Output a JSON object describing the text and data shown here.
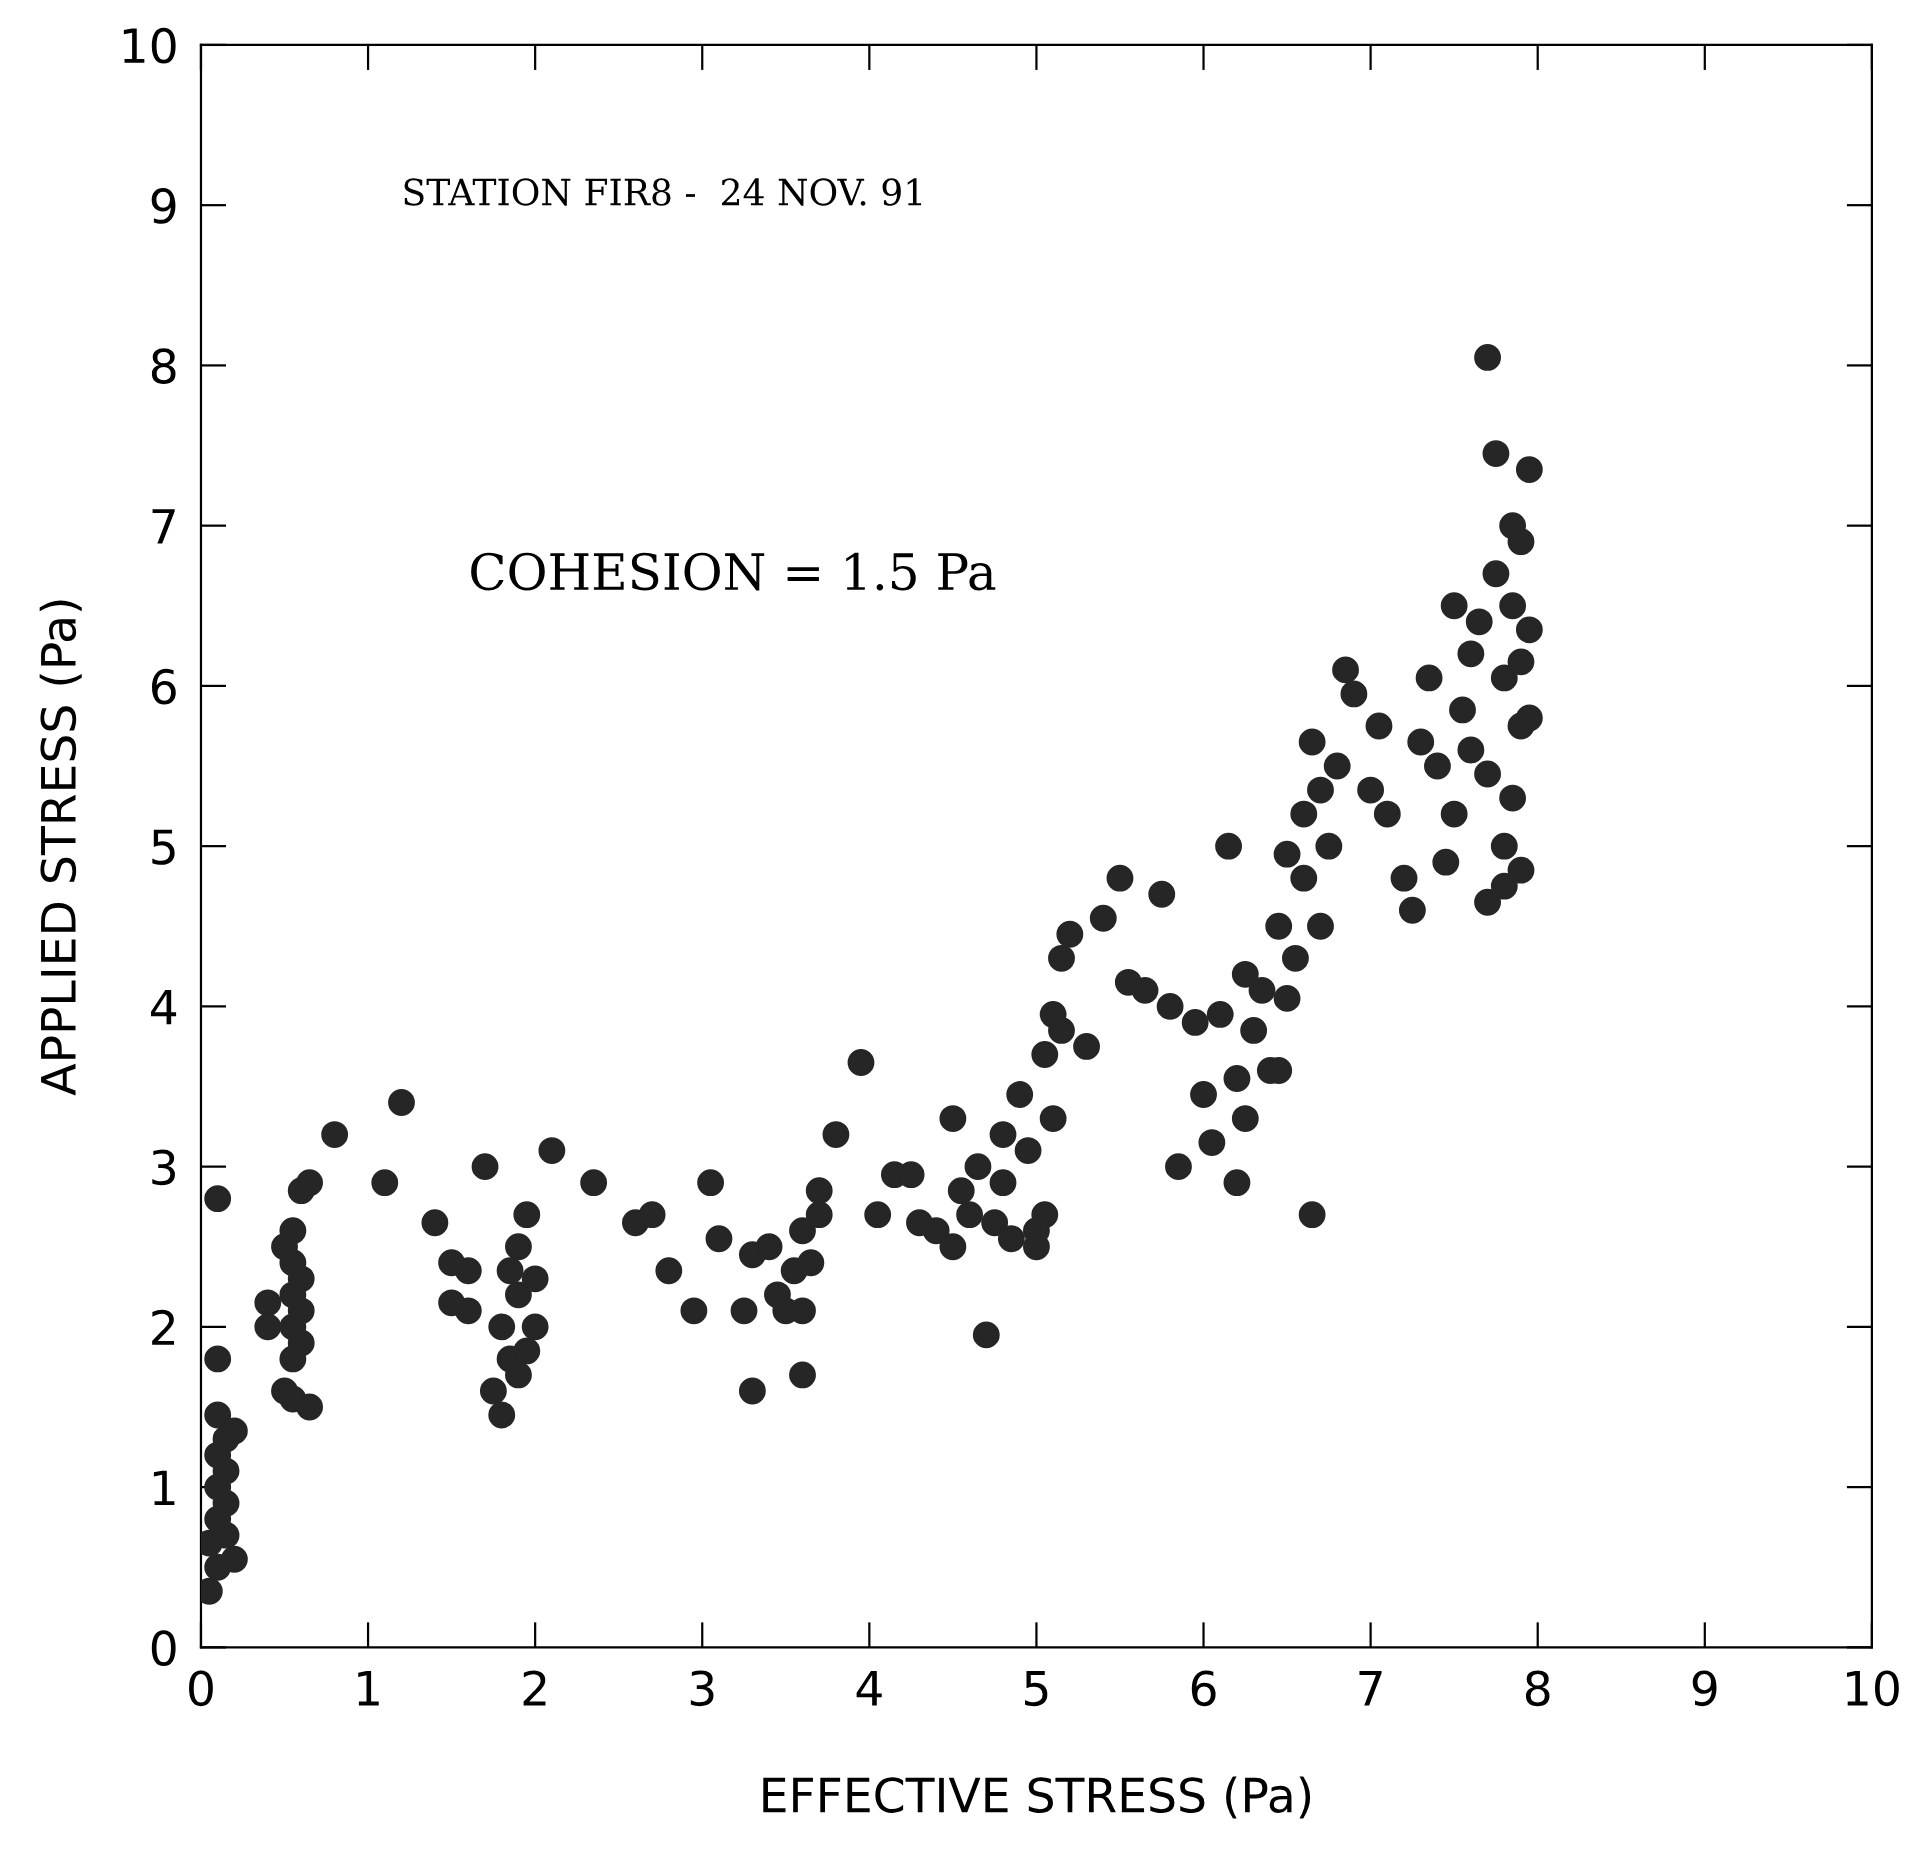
{
  "chart_data": {
    "type": "scatter",
    "xlabel": "EFFECTIVE STRESS (Pa)",
    "ylabel": "APPLIED STRESS (Pa)",
    "annotations": [
      "STATION FIR8 -  24 NOV. 91",
      "COHESION = 1.5 Pa"
    ],
    "xlim": [
      0,
      10
    ],
    "ylim": [
      0,
      10
    ],
    "xticks": [
      0,
      1,
      2,
      3,
      4,
      5,
      6,
      7,
      8,
      9,
      10
    ],
    "yticks": [
      0,
      1,
      2,
      3,
      4,
      5,
      6,
      7,
      8,
      9,
      10
    ],
    "grid": false,
    "legend": false,
    "marker": "circle",
    "series": [
      {
        "color": "#262626",
        "x": [
          0.05,
          0.1,
          0.05,
          0.1,
          0.15,
          0.1,
          0.15,
          0.1,
          0.15,
          0.1,
          0.2,
          0.15,
          0.2,
          0.1,
          0.1,
          0.4,
          0.4,
          0.5,
          0.55,
          0.55,
          0.55,
          0.55,
          0.55,
          0.55,
          0.6,
          0.65,
          0.6,
          0.6,
          0.6,
          0.5,
          0.65,
          0.8,
          1.1,
          1.2,
          1.4,
          1.5,
          1.5,
          1.6,
          1.6,
          1.7,
          1.75,
          1.8,
          1.8,
          1.85,
          1.9,
          1.9,
          1.95,
          2.0,
          1.95,
          2.0,
          1.85,
          1.9,
          2.1,
          2.35,
          2.6,
          2.7,
          2.8,
          2.95,
          3.05,
          3.1,
          3.25,
          3.3,
          3.3,
          3.4,
          3.45,
          3.5,
          3.55,
          3.6,
          3.6,
          3.65,
          3.7,
          3.7,
          3.6,
          3.8,
          3.95,
          4.05,
          4.15,
          4.25,
          4.3,
          4.4,
          4.5,
          4.5,
          4.55,
          4.6,
          4.65,
          4.7,
          4.75,
          4.8,
          4.8,
          4.85,
          4.9,
          4.95,
          5.0,
          5.0,
          5.05,
          5.05,
          5.1,
          5.1,
          5.15,
          5.15,
          5.2,
          5.3,
          5.4,
          5.5,
          5.55,
          5.65,
          5.75,
          5.8,
          5.85,
          5.95,
          6.0,
          6.05,
          6.1,
          6.15,
          6.2,
          6.2,
          6.25,
          6.25,
          6.3,
          6.35,
          6.4,
          6.45,
          6.45,
          6.5,
          6.5,
          6.55,
          6.6,
          6.6,
          6.65,
          6.65,
          6.7,
          6.7,
          6.75,
          6.8,
          6.85,
          6.9,
          7.0,
          7.05,
          7.1,
          7.2,
          7.25,
          7.3,
          7.35,
          7.4,
          7.45,
          7.5,
          7.5,
          7.55,
          7.6,
          7.6,
          7.65,
          7.7,
          7.7,
          7.7,
          7.75,
          7.75,
          7.8,
          7.8,
          7.8,
          7.85,
          7.85,
          7.9,
          7.9,
          7.9,
          7.9,
          7.95,
          7.95,
          7.95,
          7.85
        ],
        "values": [
          0.35,
          0.5,
          0.65,
          0.8,
          0.9,
          1.0,
          1.1,
          1.2,
          1.3,
          1.45,
          1.35,
          0.7,
          0.55,
          1.8,
          2.8,
          2.15,
          2.0,
          1.6,
          1.55,
          1.8,
          2.0,
          2.2,
          2.4,
          2.6,
          2.85,
          2.9,
          2.3,
          2.1,
          1.9,
          2.5,
          1.5,
          3.2,
          2.9,
          3.4,
          2.65,
          2.4,
          2.15,
          2.35,
          2.1,
          3.0,
          1.6,
          1.45,
          2.0,
          1.8,
          2.2,
          2.5,
          2.7,
          2.0,
          1.85,
          2.3,
          2.35,
          1.7,
          3.1,
          2.9,
          2.65,
          2.7,
          2.35,
          2.1,
          2.9,
          2.55,
          2.1,
          2.45,
          1.6,
          2.5,
          2.2,
          2.1,
          2.35,
          2.6,
          2.1,
          2.4,
          2.7,
          2.85,
          1.7,
          3.2,
          3.65,
          2.7,
          2.95,
          2.95,
          2.65,
          2.6,
          3.3,
          2.5,
          2.85,
          2.7,
          3.0,
          1.95,
          2.65,
          2.9,
          3.2,
          2.55,
          3.45,
          3.1,
          2.6,
          2.5,
          3.7,
          2.7,
          3.95,
          3.3,
          4.3,
          3.85,
          4.45,
          3.75,
          4.55,
          4.8,
          4.15,
          4.1,
          4.7,
          4.0,
          3.0,
          3.9,
          3.45,
          3.15,
          3.95,
          5.0,
          2.9,
          3.55,
          4.2,
          3.3,
          3.85,
          4.1,
          3.6,
          4.5,
          3.6,
          4.95,
          4.05,
          4.3,
          5.2,
          4.8,
          2.7,
          5.65,
          5.35,
          4.5,
          5.0,
          5.5,
          6.1,
          5.95,
          5.35,
          5.75,
          5.2,
          4.8,
          4.6,
          5.65,
          6.05,
          5.5,
          4.9,
          6.5,
          5.2,
          5.85,
          6.2,
          5.6,
          6.4,
          5.45,
          4.65,
          8.05,
          6.7,
          7.45,
          5.0,
          6.05,
          4.75,
          6.5,
          5.3,
          6.9,
          6.15,
          5.75,
          4.85,
          7.35,
          6.35,
          5.8,
          7.0
        ]
      }
    ]
  }
}
